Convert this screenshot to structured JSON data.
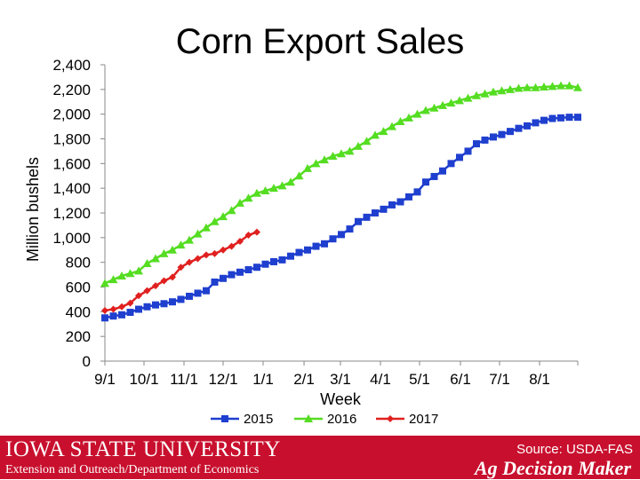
{
  "chart_data": {
    "type": "line",
    "title": "Corn Export Sales",
    "xlabel": "Week",
    "ylabel": "Million bushels",
    "ylim": [
      0,
      2400
    ],
    "yticks": [
      "0",
      "200",
      "400",
      "600",
      "800",
      "1,000",
      "1,200",
      "1,400",
      "1,600",
      "1,800",
      "2,000",
      "2,200",
      "2,400"
    ],
    "x_week_range": [
      1,
      53
    ],
    "xticks": [
      {
        "label": "9/1",
        "week": 1
      },
      {
        "label": "10/1",
        "week": 5.3
      },
      {
        "label": "11/1",
        "week": 9.7
      },
      {
        "label": "12/1",
        "week": 14
      },
      {
        "label": "1/1",
        "week": 18.4
      },
      {
        "label": "2/1",
        "week": 22.9
      },
      {
        "label": "3/1",
        "week": 26.9
      },
      {
        "label": "4/1",
        "week": 31.3
      },
      {
        "label": "5/1",
        "week": 35.6
      },
      {
        "label": "6/1",
        "week": 40.1
      },
      {
        "label": "7/1",
        "week": 44.4
      },
      {
        "label": "8/1",
        "week": 48.8
      }
    ],
    "legend_position": "bottom",
    "grid": false,
    "series": [
      {
        "name": "2015",
        "color": "#1f3fcf",
        "marker": "square",
        "values": [
          350,
          365,
          375,
          395,
          420,
          440,
          455,
          465,
          480,
          500,
          525,
          550,
          570,
          640,
          670,
          700,
          720,
          740,
          760,
          785,
          805,
          820,
          850,
          880,
          900,
          930,
          950,
          990,
          1025,
          1070,
          1130,
          1165,
          1200,
          1230,
          1265,
          1290,
          1330,
          1370,
          1450,
          1495,
          1540,
          1600,
          1650,
          1700,
          1760,
          1790,
          1815,
          1835,
          1860,
          1885,
          1905,
          1930,
          1950,
          1965,
          1970,
          1975,
          1975
        ]
      },
      {
        "name": "2016",
        "color": "#55dd22",
        "marker": "triangle",
        "values": [
          630,
          660,
          690,
          710,
          730,
          790,
          830,
          870,
          900,
          940,
          980,
          1030,
          1080,
          1130,
          1170,
          1220,
          1280,
          1320,
          1360,
          1380,
          1400,
          1420,
          1450,
          1500,
          1560,
          1600,
          1630,
          1660,
          1680,
          1700,
          1740,
          1780,
          1830,
          1860,
          1900,
          1940,
          1970,
          2000,
          2030,
          2050,
          2070,
          2090,
          2110,
          2130,
          2150,
          2165,
          2180,
          2190,
          2200,
          2210,
          2215,
          2215,
          2220,
          2225,
          2230,
          2230,
          2215
        ]
      },
      {
        "name": "2017",
        "color": "#e0201f",
        "marker": "diamond",
        "values": [
          410,
          420,
          440,
          470,
          530,
          570,
          610,
          650,
          680,
          760,
          800,
          830,
          860,
          870,
          900,
          930,
          970,
          1020,
          1045
        ]
      }
    ]
  },
  "footer": {
    "university": "IOWA STATE UNIVERSITY",
    "department": "Extension and Outreach/Department of Economics",
    "source": "Source: USDA-FAS",
    "brand": "Ag Decision Maker",
    "color": "#c8102e"
  }
}
